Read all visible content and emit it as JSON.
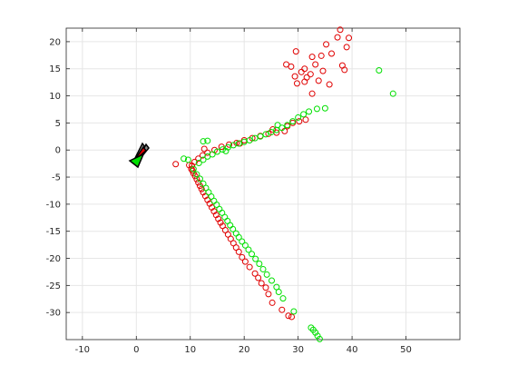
{
  "chart_data": {
    "type": "scatter",
    "xlim": [
      -13,
      60
    ],
    "ylim": [
      -35,
      22.5
    ],
    "x_ticks": [
      -10,
      0,
      10,
      20,
      30,
      40,
      50
    ],
    "y_ticks": [
      -30,
      -25,
      -20,
      -15,
      -10,
      -5,
      0,
      5,
      10,
      15,
      20
    ],
    "x_tick_labels": [
      "-10",
      "0",
      "10",
      "20",
      "30",
      "40",
      "50"
    ],
    "y_tick_labels": [
      "-30",
      "-25",
      "-20",
      "-15",
      "-10",
      "-5",
      "0",
      "5",
      "10",
      "15",
      "20"
    ],
    "grid": true,
    "colors": {
      "red": "#e00000",
      "green": "#00e000",
      "marker_edge": "#000000",
      "gray": "#888888"
    },
    "series": [
      {
        "color": "#e00000",
        "points": [
          [
            10.2,
            -3.5
          ],
          [
            10.4,
            -3.8
          ],
          [
            10.6,
            -4.3
          ],
          [
            10.9,
            -4.8
          ],
          [
            11.2,
            -5.4
          ],
          [
            11.5,
            -6
          ],
          [
            11.8,
            -6.6
          ],
          [
            12.1,
            -7.2
          ],
          [
            12.4,
            -7.8
          ],
          [
            12.8,
            -8.5
          ],
          [
            13.2,
            -9.2
          ],
          [
            13.6,
            -9.9
          ],
          [
            14,
            -10.6
          ],
          [
            14.4,
            -11.3
          ],
          [
            14.8,
            -12
          ],
          [
            15.2,
            -12.7
          ],
          [
            15.6,
            -13.4
          ],
          [
            16,
            -14
          ],
          [
            16.5,
            -14.8
          ],
          [
            17,
            -15.6
          ],
          [
            17.5,
            -16.4
          ],
          [
            18,
            -17.2
          ],
          [
            18.5,
            -18
          ],
          [
            19,
            -18.8
          ],
          [
            19.6,
            -19.8
          ],
          [
            20.2,
            -20.6
          ],
          [
            21,
            -21.6
          ],
          [
            22,
            -22.8
          ],
          [
            22.6,
            -23.6
          ],
          [
            23.2,
            -24.6
          ],
          [
            24,
            -25.4
          ],
          [
            24.5,
            -26.6
          ],
          [
            25.2,
            -28.2
          ],
          [
            27,
            -29.5
          ],
          [
            28.2,
            -30.6
          ],
          [
            28.8,
            -30.8
          ],
          [
            10.3,
            -2.9
          ],
          [
            10.8,
            -2.2
          ],
          [
            11.5,
            -1.6
          ],
          [
            12.3,
            -1
          ],
          [
            13.2,
            -0.5
          ],
          [
            14.5,
            0
          ],
          [
            15.8,
            0.6
          ],
          [
            17.2,
            1
          ],
          [
            18.6,
            1.3
          ],
          [
            20,
            1.8
          ],
          [
            21.5,
            2.2
          ],
          [
            23,
            2.6
          ],
          [
            24.5,
            3
          ],
          [
            26,
            3.2
          ],
          [
            27.5,
            3.5
          ],
          [
            28,
            4.4
          ],
          [
            29,
            5
          ],
          [
            30.2,
            5.3
          ],
          [
            31.4,
            5.6
          ],
          [
            9.8,
            -2.8
          ],
          [
            7.3,
            -2.6
          ],
          [
            12.6,
            0.2
          ],
          [
            19.2,
            1.2
          ],
          [
            25.3,
            3.8
          ],
          [
            27.8,
            15.8
          ],
          [
            28.7,
            15.4
          ],
          [
            29.4,
            13.6
          ],
          [
            29.8,
            12.3
          ],
          [
            30.6,
            14.4
          ],
          [
            31.6,
            13.4
          ],
          [
            32.3,
            14
          ],
          [
            31.2,
            15
          ],
          [
            33.2,
            15.8
          ],
          [
            32.6,
            10.4
          ],
          [
            33.8,
            12.8
          ],
          [
            34.6,
            14.6
          ],
          [
            35.8,
            12.1
          ],
          [
            34.3,
            17.4
          ],
          [
            35.2,
            19.5
          ],
          [
            36.2,
            17.8
          ],
          [
            37.3,
            20.8
          ],
          [
            37.8,
            22.2
          ],
          [
            38.2,
            15.6
          ],
          [
            39,
            19
          ],
          [
            39.4,
            20.7
          ],
          [
            38.6,
            14.8
          ],
          [
            29.6,
            18.2
          ],
          [
            31.2,
            12.6
          ],
          [
            32.6,
            17.2
          ]
        ]
      },
      {
        "color": "#00e000",
        "points": [
          [
            10.6,
            -3.5
          ],
          [
            11.2,
            -4.5
          ],
          [
            11.8,
            -5.3
          ],
          [
            12.4,
            -6.2
          ],
          [
            12.9,
            -7
          ],
          [
            13.4,
            -7.8
          ],
          [
            13.9,
            -8.6
          ],
          [
            14.4,
            -9.4
          ],
          [
            14.9,
            -10.1
          ],
          [
            15.4,
            -10.9
          ],
          [
            15.9,
            -11.6
          ],
          [
            16.4,
            -12.4
          ],
          [
            16.9,
            -13.1
          ],
          [
            17.4,
            -13.9
          ],
          [
            17.9,
            -14.6
          ],
          [
            18.5,
            -15.4
          ],
          [
            19,
            -16.1
          ],
          [
            19.6,
            -16.9
          ],
          [
            20.2,
            -17.6
          ],
          [
            20.8,
            -18.4
          ],
          [
            21.4,
            -19.2
          ],
          [
            22.1,
            -20.1
          ],
          [
            22.8,
            -21
          ],
          [
            23.5,
            -22
          ],
          [
            24.2,
            -23
          ],
          [
            25.1,
            -24.1
          ],
          [
            26,
            -25.3
          ],
          [
            26.4,
            -26.2
          ],
          [
            27.2,
            -27.4
          ],
          [
            29.2,
            -29.8
          ],
          [
            32.4,
            -32.8
          ],
          [
            32.8,
            -33.2
          ],
          [
            33.2,
            -33.7
          ],
          [
            33.6,
            -34.3
          ],
          [
            34,
            -34.9
          ],
          [
            34.4,
            -35.2
          ],
          [
            11.6,
            -2.4
          ],
          [
            12.4,
            -1.8
          ],
          [
            13.2,
            -1.2
          ],
          [
            14.1,
            -0.8
          ],
          [
            15,
            -0.3
          ],
          [
            16,
            0.1
          ],
          [
            17,
            0.5
          ],
          [
            18,
            0.9
          ],
          [
            19,
            1.2
          ],
          [
            20,
            1.5
          ],
          [
            21,
            1.8
          ],
          [
            22,
            2.2
          ],
          [
            23,
            2.5
          ],
          [
            24,
            2.9
          ],
          [
            25,
            3.3
          ],
          [
            26,
            3.7
          ],
          [
            27,
            4.1
          ],
          [
            28,
            4.6
          ],
          [
            29,
            5.3
          ],
          [
            30,
            6
          ],
          [
            31,
            6.6
          ],
          [
            32,
            7.1
          ],
          [
            33.5,
            7.6
          ],
          [
            35,
            7.7
          ],
          [
            8.8,
            -1.6
          ],
          [
            9.6,
            -1.8
          ],
          [
            12.4,
            1.6
          ],
          [
            13.2,
            1.7
          ],
          [
            16.6,
            -0.2
          ],
          [
            26.2,
            4.6
          ],
          [
            45,
            14.7
          ],
          [
            47.6,
            10.4
          ]
        ]
      }
    ]
  }
}
